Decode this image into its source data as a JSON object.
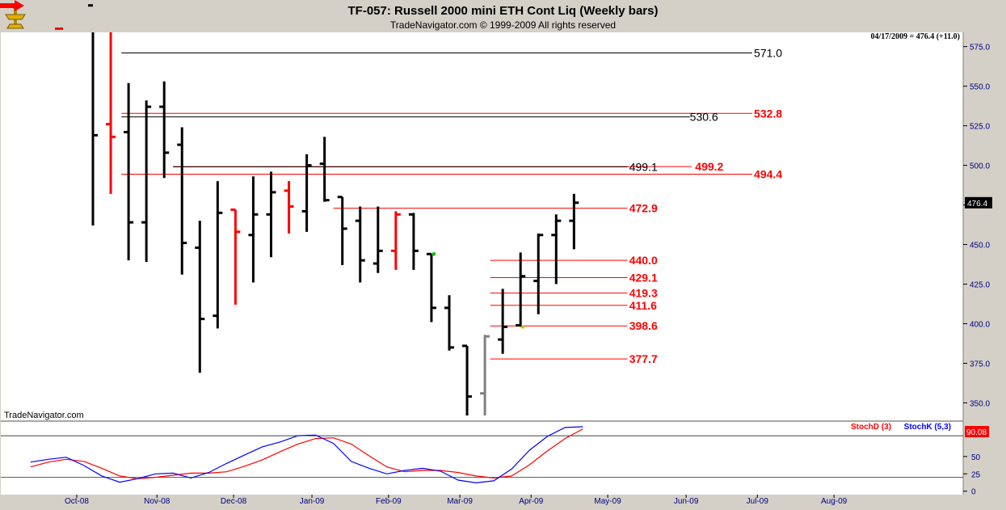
{
  "window": {
    "title": "TF-057:  Russell 2000 mini ETH Cont Liq  (Weekly bars)",
    "subtitle": "TradeNavigator.com © 1999-2009 All rights reserved",
    "watermark": "TradeNavigator.com",
    "icons": [
      "trade-navigator-logo-icon",
      "next-page-arrow-icon"
    ]
  },
  "colors": {
    "bar_default": "#000000",
    "bar_red": "#ff0000",
    "bar_gray": "#808080",
    "level_black": "#000000",
    "level_red": "#ff0000",
    "stoch_d": "#ff0000",
    "stoch_k": "#0000ff",
    "price_badge_bg": "#000000",
    "stoch_badge_bg": "#ff0000"
  },
  "chart_data": [
    {
      "type": "bar",
      "subtype": "ohlc",
      "readout": "04/17/2009 = 476.4 (+11.0)",
      "last_value_label": "476.4",
      "y_ticks": [
        "575.0",
        "550.0",
        "525.0",
        "500.0",
        "475.0",
        "450.0",
        "425.0",
        "400.0",
        "375.0",
        "350.0"
      ],
      "y_tick_values": [
        575,
        550,
        525,
        500,
        475,
        450,
        425,
        400,
        375,
        350
      ],
      "ylim": [
        339,
        584
      ],
      "x_ticks": [
        "Oct-08",
        "Nov-08",
        "Dec-08",
        "Jan-09",
        "Feb-09",
        "Mar-09",
        "Apr-09",
        "May-09",
        "Jun-09",
        "Jul-09",
        "Aug-09"
      ],
      "x_tick_week_index": [
        0,
        4.5,
        8.8,
        13.2,
        17.5,
        21.5,
        25.5,
        29.8,
        34.2,
        38.2,
        42.5
      ],
      "grid": false,
      "bars": [
        {
          "date": "2008-09-26",
          "open": 601,
          "high": 601,
          "low": 462,
          "close": 519,
          "color": "black"
        },
        {
          "date": "2008-10-03",
          "open": 526,
          "high": 584,
          "low": 482,
          "close": 518,
          "color": "red"
        },
        {
          "date": "2008-10-10",
          "open": 521,
          "high": 552,
          "low": 440,
          "close": 464,
          "color": "black"
        },
        {
          "date": "2008-10-17",
          "open": 464,
          "high": 541,
          "low": 439,
          "close": 537,
          "color": "black"
        },
        {
          "date": "2008-10-24",
          "open": 537,
          "high": 553,
          "low": 492,
          "close": 508,
          "color": "black"
        },
        {
          "date": "2008-10-31",
          "open": 513,
          "high": 524,
          "low": 431,
          "close": 451,
          "color": "black"
        },
        {
          "date": "2008-11-07",
          "open": 448,
          "high": 465,
          "low": 369,
          "close": 403,
          "color": "black"
        },
        {
          "date": "2008-11-14",
          "open": 405,
          "high": 490,
          "low": 397,
          "close": 470,
          "color": "black"
        },
        {
          "date": "2008-11-21",
          "open": 472,
          "high": 472,
          "low": 412,
          "close": 458,
          "color": "red"
        },
        {
          "date": "2008-11-28",
          "open": 456,
          "high": 493,
          "low": 426,
          "close": 469,
          "color": "black"
        },
        {
          "date": "2008-12-05",
          "open": 469,
          "high": 496,
          "low": 442,
          "close": 483,
          "color": "black"
        },
        {
          "date": "2008-12-12",
          "open": 484,
          "high": 490,
          "low": 457,
          "close": 474,
          "color": "red"
        },
        {
          "date": "2008-12-19",
          "open": 471,
          "high": 507,
          "low": 458,
          "close": 500,
          "color": "black"
        },
        {
          "date": "2008-12-26",
          "open": 501,
          "high": 518,
          "low": 477,
          "close": 478,
          "color": "black"
        },
        {
          "date": "2009-01-02",
          "open": 480,
          "high": 480,
          "low": 437,
          "close": 460,
          "color": "black"
        },
        {
          "date": "2009-01-09",
          "open": 465,
          "high": 474,
          "low": 426,
          "close": 440,
          "color": "black"
        },
        {
          "date": "2009-01-16",
          "open": 438,
          "high": 474,
          "low": 432,
          "close": 446,
          "color": "black"
        },
        {
          "date": "2009-01-23",
          "open": 446,
          "high": 471,
          "low": 434,
          "close": 469,
          "color": "red"
        },
        {
          "date": "2009-01-30",
          "open": 469,
          "high": 470,
          "low": 434,
          "close": 446,
          "color": "black"
        },
        {
          "date": "2009-02-06",
          "open": 444,
          "high": 444,
          "low": 401,
          "close": 410,
          "color": "black"
        },
        {
          "date": "2009-02-13",
          "open": 410,
          "high": 418,
          "low": 383,
          "close": 385,
          "color": "black"
        },
        {
          "date": "2009-02-20",
          "open": 386,
          "high": 386,
          "low": 342,
          "close": 354,
          "color": "black"
        },
        {
          "date": "2009-02-27",
          "open": 356,
          "high": 393,
          "low": 342,
          "close": 392,
          "color": "gray"
        },
        {
          "date": "2009-03-06",
          "open": 390,
          "high": 422,
          "low": 381,
          "close": 398,
          "color": "black"
        },
        {
          "date": "2009-03-13",
          "open": 399,
          "high": 445,
          "low": 398,
          "close": 430,
          "color": "black"
        },
        {
          "date": "2009-03-20",
          "open": 427,
          "high": 457,
          "low": 406,
          "close": 456,
          "color": "black"
        },
        {
          "date": "2009-03-27",
          "open": 456,
          "high": 469,
          "low": 425,
          "close": 465,
          "color": "black"
        },
        {
          "date": "2009-04-03",
          "open": 465,
          "high": 482,
          "low": 447,
          "close": 476.4,
          "color": "black"
        }
      ],
      "levels": [
        {
          "value": 571.0,
          "label": "571.0",
          "color": "black",
          "from_week": 1.6,
          "to_week": 37.0,
          "label_at_week": 37.1
        },
        {
          "value": 532.8,
          "label": "532.8",
          "color": "red",
          "from_week": 1.6,
          "to_week": 37.0,
          "label_at_week": 37.1
        },
        {
          "value": 530.6,
          "label": "530.6",
          "color": "black",
          "from_week": 1.6,
          "to_week": 33.5,
          "label_at_week": 33.5
        },
        {
          "value": 499.2,
          "label": "499.2",
          "color": "red",
          "from_week": 4.5,
          "to_week": 33.6,
          "label_at_week": 33.8
        },
        {
          "value": 499.1,
          "label": "499.1",
          "color": "black",
          "from_week": 4.5,
          "to_week": 30.0,
          "label_at_week": 30.1
        },
        {
          "value": 494.4,
          "label": "494.4",
          "color": "red",
          "from_week": 1.6,
          "to_week": 37.0,
          "label_at_week": 37.1
        },
        {
          "value": 472.9,
          "label": "472.9",
          "color": "red",
          "from_week": 13.5,
          "to_week": 30.0,
          "label_at_week": 30.1
        },
        {
          "value": 440.0,
          "label": "440.0",
          "color": "red",
          "from_week": 22.3,
          "to_week": 30.0,
          "label_at_week": 30.1
        },
        {
          "value": 429.1,
          "label": "429.1",
          "color": "red",
          "from_week": 22.3,
          "to_week": 30.0,
          "label_at_week": 30.1
        },
        {
          "value": 419.3,
          "label": "419.3",
          "color": "red",
          "from_week": 22.3,
          "to_week": 30.0,
          "label_at_week": 30.1
        },
        {
          "value": 411.6,
          "label": "411.6",
          "color": "red",
          "from_week": 22.3,
          "to_week": 30.0,
          "label_at_week": 30.1
        },
        {
          "value": 398.6,
          "label": "398.6",
          "color": "red",
          "from_week": 22.3,
          "to_week": 30.0,
          "label_at_week": 30.1
        },
        {
          "value": 377.7,
          "label": "377.7",
          "color": "red",
          "from_week": 22.3,
          "to_week": 30.0,
          "label_at_week": 30.1
        }
      ],
      "markers": [
        {
          "week": 19,
          "value": 444,
          "color": "#00c000"
        },
        {
          "week": 24,
          "value": 398,
          "color": "#c0c000"
        }
      ]
    },
    {
      "type": "line",
      "legend": [
        "StochD (3)",
        "StochK (5,3)"
      ],
      "legend_placement": "top-right",
      "last_value_label": "90.08",
      "y_ticks": [
        "50",
        "25",
        "0"
      ],
      "y_tick_values": [
        50,
        25,
        0
      ],
      "reference_lines": [
        80,
        20
      ],
      "ylim": [
        -5,
        100
      ],
      "x": [
        -3.5,
        -2.5,
        -1.5,
        -0.5,
        0.5,
        1.5,
        2.5,
        3.5,
        4.5,
        5.5,
        6.5,
        7.5,
        8.5,
        9.5,
        10.5,
        11.5,
        12.5,
        13.5,
        14.5,
        15.5,
        16.5,
        17.5,
        18.5,
        19.5,
        20.5,
        21.5,
        22.5,
        23.5,
        24.5,
        25.5,
        26.5,
        27.5
      ],
      "series": [
        {
          "name": "StochD (3)",
          "color": "red",
          "values": [
            35,
            42,
            46,
            43,
            33,
            22,
            18,
            20,
            23,
            26,
            26,
            28,
            36,
            45,
            57,
            68,
            76,
            77,
            68,
            51,
            35,
            28,
            30,
            30,
            27,
            22,
            19,
            22,
            38,
            58,
            76,
            90
          ]
        },
        {
          "name": "StochK (5,3)",
          "color": "blue",
          "values": [
            42,
            46,
            49,
            37,
            22,
            13,
            18,
            25,
            26,
            19,
            27,
            40,
            52,
            64,
            71,
            80,
            81,
            69,
            43,
            33,
            25,
            30,
            33,
            29,
            16,
            12,
            15,
            32,
            59,
            79,
            92,
            93
          ]
        }
      ]
    }
  ]
}
